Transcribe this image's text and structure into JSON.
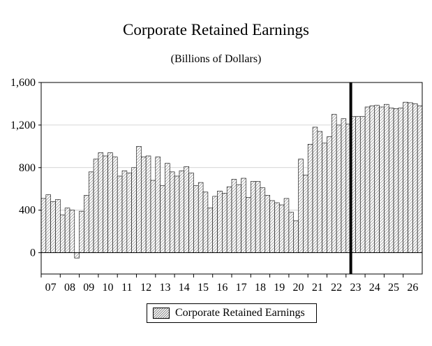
{
  "chart_data": {
    "type": "bar",
    "title": "Corporate Retained Earnings",
    "subtitle": "(Billions of Dollars)",
    "ylim": [
      -200,
      1600
    ],
    "yticks": [
      0,
      400,
      800,
      1200,
      1600
    ],
    "ytick_labels": [
      "0",
      "400",
      "800",
      "1,200",
      "1,600"
    ],
    "xtick_labels": [
      "07",
      "08",
      "09",
      "10",
      "11",
      "12",
      "13",
      "14",
      "15",
      "16",
      "17",
      "18",
      "19",
      "20",
      "21",
      "22",
      "23",
      "24",
      "25",
      "26"
    ],
    "grid": true,
    "legend_position": "bottom-center",
    "forecast_divider_after_quarter": "23Q1",
    "series": [
      {
        "name": "Corporate Retained Earnings",
        "frequency": "quarterly",
        "start": "2007Q1",
        "values": [
          510,
          545,
          480,
          500,
          355,
          420,
          400,
          -50,
          390,
          540,
          760,
          880,
          940,
          910,
          940,
          900,
          720,
          770,
          750,
          800,
          1000,
          900,
          910,
          680,
          900,
          630,
          840,
          760,
          720,
          770,
          810,
          750,
          630,
          660,
          570,
          420,
          530,
          580,
          560,
          620,
          690,
          640,
          700,
          520,
          670,
          670,
          610,
          540,
          490,
          470,
          450,
          510,
          380,
          300,
          880,
          730,
          1020,
          1180,
          1140,
          1030,
          1090,
          1300,
          1200,
          1260,
          1210,
          1280,
          1280,
          1280,
          1370,
          1380,
          1385,
          1370,
          1395,
          1360,
          1355,
          1360,
          1415,
          1410,
          1400,
          1380
        ]
      }
    ],
    "colors": {
      "bar_fill": "#d9d9d9",
      "bar_stroke": "#000000",
      "divider": "#000000",
      "grid": "#c8c8c8"
    }
  }
}
